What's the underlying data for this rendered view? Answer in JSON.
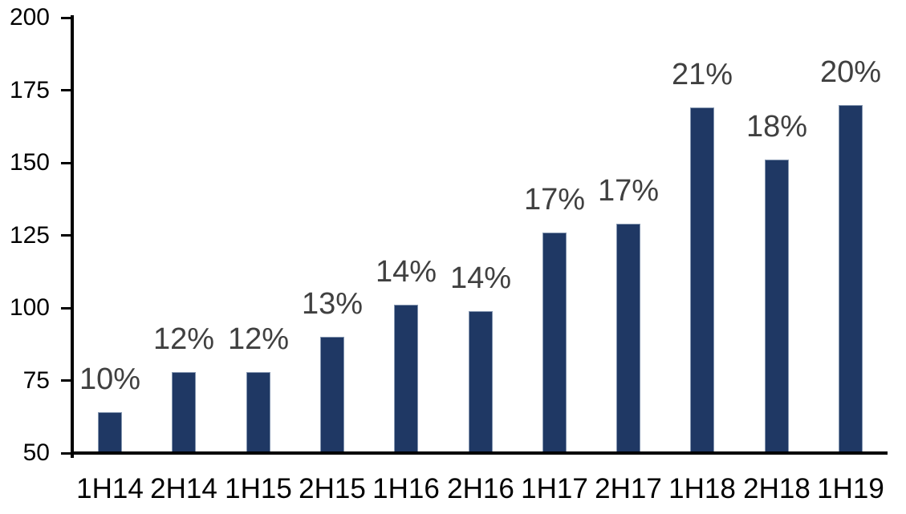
{
  "chart_data": {
    "type": "bar",
    "title": "",
    "xlabel": "",
    "ylabel": "",
    "categories": [
      "1H14",
      "2H14",
      "1H15",
      "2H15",
      "1H16",
      "2H16",
      "1H17",
      "2H17",
      "1H18",
      "2H18",
      "1H19"
    ],
    "values": [
      64,
      78,
      78,
      90,
      101,
      99,
      126,
      129,
      169,
      151,
      170
    ],
    "bar_labels": [
      "10%",
      "12%",
      "12%",
      "13%",
      "14%",
      "14%",
      "17%",
      "17%",
      "21%",
      "18%",
      "20%"
    ],
    "y_ticks": [
      50,
      75,
      100,
      125,
      150,
      175,
      200
    ],
    "ylim": [
      50,
      200
    ],
    "grid": false,
    "legend_position": "none",
    "colors": {
      "bar_fill": "#1F3864",
      "bar_border": "#8496B0",
      "data_label": "#404040",
      "axis_text": "#000000",
      "axis_line": "#000000",
      "background": "#FFFFFF"
    }
  }
}
